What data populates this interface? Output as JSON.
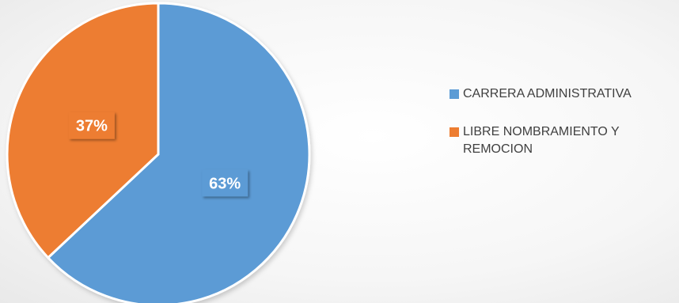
{
  "chart_data": {
    "type": "pie",
    "categories": [
      "CARRERA ADMINISTRATIVA",
      "LIBRE NOMBRAMIENTO Y REMOCION"
    ],
    "values": [
      63,
      37
    ],
    "unit": "%",
    "data_labels": [
      "63%",
      "37%"
    ],
    "colors": [
      "#5b9bd5",
      "#ed7d31"
    ],
    "start_angle_deg": 0,
    "direction": "clockwise",
    "legend_placement": "right"
  },
  "legend": {
    "items": [
      {
        "label": "CARRERA ADMINISTRATIVA",
        "color": "#5b9bd5"
      },
      {
        "label": "LIBRE NOMBRAMIENTO Y REMOCION",
        "color": "#ed7d31"
      }
    ]
  }
}
